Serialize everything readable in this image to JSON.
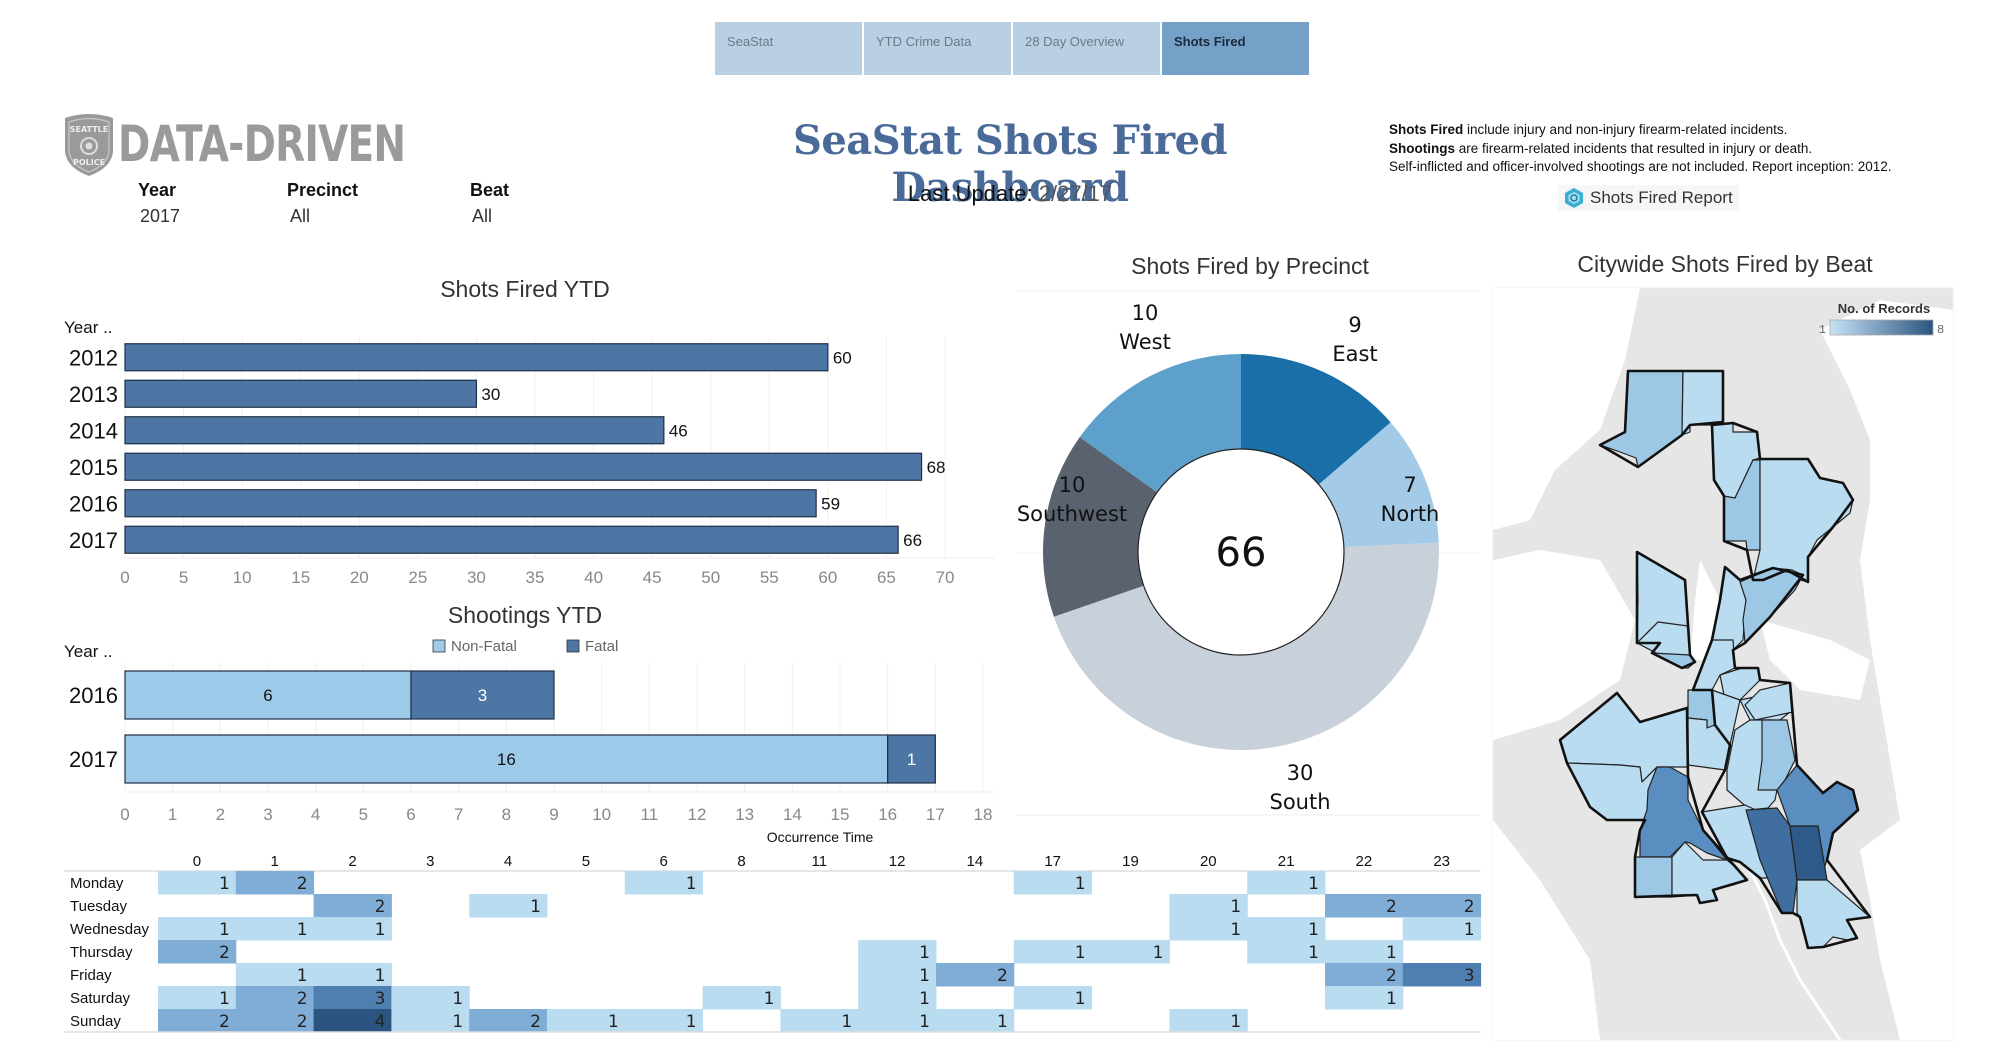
{
  "nav": {
    "tabs": [
      {
        "label": "SeaStat",
        "active": false
      },
      {
        "label": "YTD Crime Data",
        "active": false
      },
      {
        "label": "28 Day Overview",
        "active": false
      },
      {
        "label": "Shots Fired",
        "active": true
      }
    ]
  },
  "logo": {
    "badge_top": "SEATTLE",
    "badge_bottom": "POLICE",
    "text": "DATA-DRIVEN"
  },
  "filters": {
    "year": {
      "label": "Year",
      "value": "2017"
    },
    "precinct": {
      "label": "Precinct",
      "value": "All"
    },
    "beat": {
      "label": "Beat",
      "value": "All"
    }
  },
  "header": {
    "title": "SeaStat Shots Fired Dashboard",
    "last_update_label": "Last Update:",
    "last_update_value": "2/27/17"
  },
  "notes": {
    "line1_bold": "Shots Fired",
    "line1_rest": " include injury and non-injury firearm-related incidents.",
    "line2_bold": "Shootings",
    "line2_rest": " are firearm-related incidents that resulted in injury or death.",
    "line3": "Self-inflicted and officer-involved shootings are not included. Report inception: 2012."
  },
  "report_button": {
    "label": "Shots Fired Report",
    "icon": "hexagon-report-icon"
  },
  "colors": {
    "bar": "#4e76a5",
    "non_fatal": "#9ecae9",
    "fatal": "#4e76a5",
    "title": "#4a6b99",
    "tab": "#b9cfe3",
    "tab_active": "#75a0c8",
    "heat": [
      "#ffffff",
      "#b9dcf0",
      "#7fadd5",
      "#4f7fb0",
      "#2c5480"
    ]
  },
  "chart_data": [
    {
      "id": "shots_fired_ytd",
      "type": "bar",
      "orientation": "horizontal",
      "title": "Shots Fired YTD",
      "ylabel": "Year ..",
      "xlabel": "",
      "categories": [
        "2012",
        "2013",
        "2014",
        "2015",
        "2016",
        "2017"
      ],
      "values": [
        60,
        30,
        46,
        68,
        59,
        66
      ],
      "xlim": [
        0,
        70
      ],
      "xticks": [
        0,
        5,
        10,
        15,
        20,
        25,
        30,
        35,
        40,
        45,
        50,
        55,
        60,
        65,
        70
      ],
      "grid": true
    },
    {
      "id": "shootings_ytd",
      "type": "bar",
      "orientation": "horizontal",
      "stacked": true,
      "title": "Shootings YTD",
      "ylabel": "Year ..",
      "xlabel": "",
      "categories": [
        "2016",
        "2017"
      ],
      "series": [
        {
          "name": "Non-Fatal",
          "values": [
            6,
            16
          ]
        },
        {
          "name": "Fatal",
          "values": [
            3,
            1
          ]
        }
      ],
      "xlim": [
        0,
        18
      ],
      "xticks": [
        0,
        1,
        2,
        3,
        4,
        5,
        6,
        7,
        8,
        9,
        10,
        11,
        12,
        13,
        14,
        15,
        16,
        17,
        18
      ],
      "legend": "top-center",
      "grid": true
    },
    {
      "id": "occurrence_time_heatmap",
      "type": "heatmap",
      "title": "Occurrence Time",
      "x": [
        "0",
        "1",
        "2",
        "3",
        "4",
        "5",
        "6",
        "8",
        "11",
        "12",
        "14",
        "17",
        "19",
        "20",
        "21",
        "22",
        "23"
      ],
      "y": [
        "Monday",
        "Tuesday",
        "Wednesday",
        "Thursday",
        "Friday",
        "Saturday",
        "Sunday"
      ],
      "values": [
        [
          1,
          2,
          null,
          null,
          null,
          null,
          1,
          null,
          null,
          null,
          null,
          1,
          null,
          null,
          1,
          null,
          null
        ],
        [
          null,
          null,
          2,
          null,
          1,
          null,
          null,
          null,
          null,
          null,
          null,
          null,
          null,
          1,
          null,
          2,
          2
        ],
        [
          1,
          1,
          1,
          null,
          null,
          null,
          null,
          null,
          null,
          null,
          null,
          null,
          null,
          1,
          1,
          null,
          1
        ],
        [
          2,
          null,
          null,
          null,
          null,
          null,
          null,
          null,
          null,
          1,
          null,
          1,
          1,
          null,
          1,
          1,
          null
        ],
        [
          null,
          1,
          1,
          null,
          null,
          null,
          null,
          null,
          null,
          1,
          2,
          null,
          null,
          null,
          null,
          2,
          3
        ],
        [
          1,
          2,
          3,
          1,
          null,
          null,
          null,
          1,
          null,
          1,
          null,
          1,
          null,
          null,
          null,
          1,
          null
        ],
        [
          2,
          2,
          4,
          1,
          2,
          1,
          1,
          null,
          1,
          1,
          1,
          null,
          null,
          1,
          null,
          null,
          null
        ]
      ]
    },
    {
      "id": "shots_fired_by_precinct",
      "type": "pie",
      "donut": true,
      "title": "Shots Fired by Precinct",
      "center_label": "66",
      "slices": [
        {
          "label": "East",
          "value": 9,
          "color": "#1a6fa8"
        },
        {
          "label": "North",
          "value": 7,
          "color": "#a3cbe8"
        },
        {
          "label": "South",
          "value": 30,
          "color": "#c8d1da"
        },
        {
          "label": "Southwest",
          "value": 10,
          "color": "#5a6270"
        },
        {
          "label": "West",
          "value": 10,
          "color": "#5da0cc"
        }
      ]
    },
    {
      "id": "citywide_shots_by_beat",
      "type": "heatmap",
      "title": "Citywide Shots Fired by Beat",
      "legend_title": "No. of Records",
      "legend_min": "1",
      "legend_max": "8",
      "legend": "top-right"
    }
  ]
}
